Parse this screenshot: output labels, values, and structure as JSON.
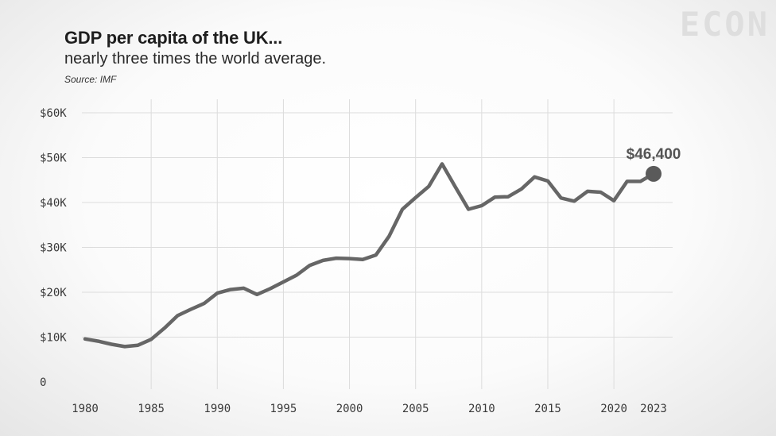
{
  "header": {
    "title": "GDP per capita of the UK...",
    "subtitle": "nearly three times the world average.",
    "source": "Source: IMF"
  },
  "logo": "ECON",
  "chart_data": {
    "type": "line",
    "xlim": [
      1980,
      2023
    ],
    "ylim": [
      0,
      60000
    ],
    "grid": true,
    "line_color": "#666666",
    "x_ticks": [
      1980,
      1985,
      1990,
      1995,
      2000,
      2005,
      2010,
      2015,
      2020,
      2023
    ],
    "x_tick_labels": [
      "1980",
      "1985",
      "1990",
      "1995",
      "2000",
      "2005",
      "2010",
      "2015",
      "2020",
      "2023"
    ],
    "y_ticks": [
      0,
      10000,
      20000,
      30000,
      40000,
      50000,
      60000
    ],
    "y_tick_labels": [
      "0",
      "$10K",
      "$20K",
      "$30K",
      "$40K",
      "$50K",
      "$60K"
    ],
    "series": [
      {
        "x": [
          1980,
          1981,
          1982,
          1983,
          1984,
          1985,
          1986,
          1987,
          1988,
          1989,
          1990,
          1991,
          1992,
          1993,
          1994,
          1995,
          1996,
          1997,
          1998,
          1999,
          2000,
          2001,
          2002,
          2003,
          2004,
          2005,
          2006,
          2007,
          2008,
          2009,
          2010,
          2011,
          2012,
          2013,
          2014,
          2015,
          2016,
          2017,
          2018,
          2019,
          2020,
          2021,
          2022,
          2023
        ],
        "values": [
          9600,
          9100,
          8400,
          7900,
          8200,
          9500,
          12000,
          14800,
          16200,
          17500,
          19800,
          20600,
          20900,
          19500,
          20800,
          22300,
          23800,
          26000,
          27100,
          27600,
          27500,
          27300,
          28300,
          32500,
          38500,
          41100,
          43600,
          48600,
          43500,
          38500,
          39300,
          41200,
          41300,
          43000,
          45700,
          44800,
          41000,
          40300,
          42500,
          42300,
          40400,
          44700,
          44700,
          46400
        ]
      }
    ],
    "annotation": {
      "x": 2023,
      "y": 46400,
      "label": "$46,400"
    }
  }
}
